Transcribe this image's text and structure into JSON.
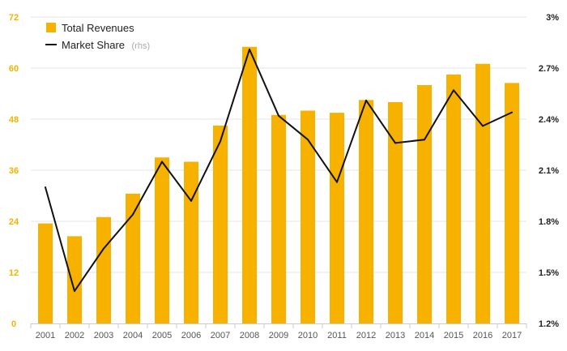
{
  "chart_data": {
    "type": "bar+line",
    "categories": [
      "2001",
      "2002",
      "2003",
      "2004",
      "2005",
      "2006",
      "2007",
      "2008",
      "2009",
      "2010",
      "2011",
      "2012",
      "2013",
      "2014",
      "2015",
      "2016",
      "2017"
    ],
    "series": [
      {
        "name": "Total Revenues",
        "type": "bar",
        "axis": "left",
        "values": [
          23.5,
          20.5,
          25,
          30.5,
          39,
          38,
          46.5,
          65,
          49,
          50,
          49.5,
          52.5,
          52,
          56,
          58.5,
          61,
          56.5
        ]
      },
      {
        "name": "Market Share",
        "name_suffix": "(rhs)",
        "type": "line",
        "axis": "right",
        "values": [
          2.0,
          1.39,
          1.64,
          1.84,
          2.15,
          1.92,
          2.27,
          2.81,
          2.42,
          2.28,
          2.03,
          2.51,
          2.26,
          2.28,
          2.57,
          2.36,
          2.44
        ]
      }
    ],
    "y_left": {
      "min": 0,
      "max": 72,
      "ticks": [
        "0",
        "12",
        "24",
        "36",
        "48",
        "60",
        "72"
      ]
    },
    "y_right": {
      "min": 1.2,
      "max": 3.0,
      "ticks": [
        "1.2%",
        "1.5%",
        "1.8%",
        "2.1%",
        "2.4%",
        "2.7%",
        "3%"
      ]
    },
    "grid": true,
    "legend_position": "top-left",
    "colors": {
      "bar": "#f7b200",
      "line": "#111111",
      "left_tick": "#f7b200",
      "grid": "#e6e6e6"
    }
  }
}
